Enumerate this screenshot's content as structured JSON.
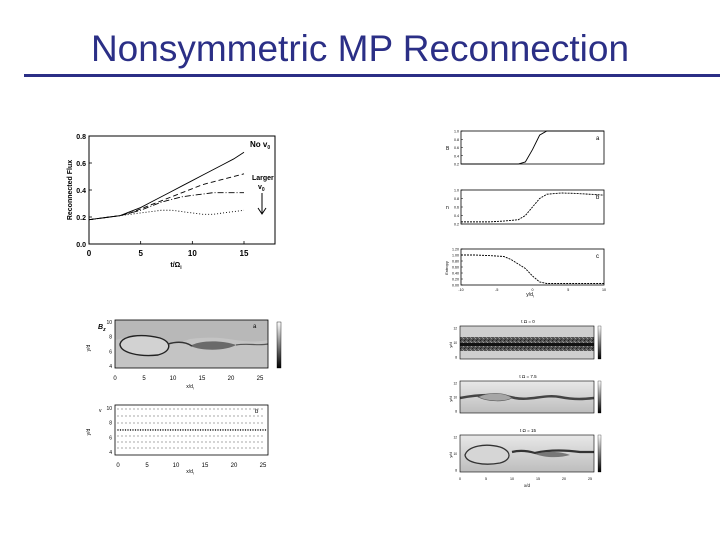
{
  "slide": {
    "title": "Nonsymmetric MP Reconnection"
  },
  "panel_flux": {
    "ylabel": "Reconnected Flux",
    "xlabel": "t/Ω",
    "xlabel_sub": "i",
    "curve_label_top": "No v",
    "curve_label_top_sub": "0",
    "curve_label_mid_1": "Larger",
    "curve_label_mid_2": "v",
    "curve_label_mid_sub": "0"
  },
  "panel_profiles": {
    "label_a": "a",
    "label_b": "b",
    "label_c": "c",
    "ylabel_a": "B",
    "ylabel_b": "n",
    "ylabel_c": "Entropy",
    "xlabel": "y/d",
    "xlabel_sub": "i"
  },
  "panel_density_a": {
    "label": "a",
    "corner": "B",
    "corner_sub": "z",
    "ylabel": "y/d",
    "xlabel": "x/d",
    "xlabel_sub": "i"
  },
  "panel_density_b": {
    "label": "b",
    "corner": "v",
    "ylabel": "y/d",
    "xlabel": "x/d",
    "xlabel_sub": "i"
  },
  "panel_snapshots": {
    "title_1": "t Ω",
    "title_1_value": "= 0",
    "title_2": "t Ω",
    "title_2_value": "= 7.5",
    "title_3": "t Ω",
    "title_3_value": "= 15",
    "ylabel": "y/d",
    "xlabel": "x/d"
  },
  "chart_data": [
    {
      "type": "line",
      "xlabel": "t/Ω",
      "ylabel": "Reconnected Flux",
      "xlim": [
        0,
        18
      ],
      "ylim": [
        0.0,
        0.8
      ],
      "x_ticks": [
        0,
        5,
        10,
        15
      ],
      "y_ticks": [
        0.0,
        0.2,
        0.4,
        0.6,
        0.8
      ],
      "x_ticklabels": [
        "0",
        "5",
        "10",
        "15"
      ],
      "y_ticklabels": [
        "0.0",
        "0.2",
        "0.4",
        "0.6",
        "0.8"
      ],
      "series": [
        {
          "name": "No v0",
          "style": "solid",
          "x": [
            0,
            1,
            2,
            3,
            4,
            5,
            6,
            7,
            8,
            9,
            10,
            11,
            12,
            13,
            14,
            15
          ],
          "y": [
            0.18,
            0.19,
            0.2,
            0.21,
            0.24,
            0.27,
            0.31,
            0.35,
            0.39,
            0.43,
            0.47,
            0.51,
            0.55,
            0.59,
            0.63,
            0.68
          ]
        },
        {
          "style": "dashed",
          "x": [
            0,
            1,
            2,
            3,
            4,
            5,
            6,
            7,
            8,
            9,
            10,
            11,
            12,
            13,
            14,
            15
          ],
          "y": [
            0.18,
            0.19,
            0.2,
            0.21,
            0.23,
            0.26,
            0.29,
            0.32,
            0.35,
            0.38,
            0.41,
            0.44,
            0.46,
            0.48,
            0.5,
            0.52
          ]
        },
        {
          "style": "dash-dot",
          "x": [
            0,
            1,
            2,
            3,
            4,
            5,
            6,
            7,
            8,
            9,
            10,
            11,
            12,
            13,
            14,
            15
          ],
          "y": [
            0.18,
            0.19,
            0.2,
            0.21,
            0.23,
            0.25,
            0.28,
            0.31,
            0.33,
            0.35,
            0.36,
            0.37,
            0.38,
            0.38,
            0.38,
            0.38
          ]
        },
        {
          "style": "dotted",
          "x": [
            0,
            1,
            2,
            3,
            4,
            5,
            6,
            7,
            8,
            9,
            10,
            11,
            12,
            13,
            14,
            15
          ],
          "y": [
            0.18,
            0.19,
            0.2,
            0.21,
            0.22,
            0.23,
            0.24,
            0.25,
            0.25,
            0.24,
            0.23,
            0.22,
            0.22,
            0.23,
            0.24,
            0.25
          ]
        }
      ],
      "annotations": [
        "No v0",
        "Larger v0"
      ]
    },
    {
      "type": "line",
      "xlabel": "y/d",
      "x_ticklabels": [
        "-10",
        "-5",
        "0",
        "5",
        "10"
      ],
      "xlim": [
        -10,
        10
      ],
      "panels": [
        {
          "label": "a",
          "ylabel": "B",
          "y_ticklabels": [
            "1.0",
            "0.8",
            "0.6",
            "0.4",
            "0.2"
          ],
          "y_ticks": [
            1.0,
            0.8,
            0.6,
            0.4,
            0.2
          ],
          "ylim": [
            0.2,
            1.0
          ],
          "x": [
            -10,
            -8,
            -6,
            -4,
            -2,
            -1,
            0,
            1,
            2,
            4,
            6,
            8,
            10
          ],
          "y": [
            0.2,
            0.2,
            0.2,
            0.2,
            0.2,
            0.25,
            0.55,
            0.9,
            1.0,
            1.0,
            1.0,
            1.0,
            1.0
          ]
        },
        {
          "label": "b",
          "ylabel": "n",
          "y_ticklabels": [
            "1.0",
            "0.8",
            "0.6",
            "0.4",
            "0.2"
          ],
          "y_ticks": [
            1.0,
            0.8,
            0.6,
            0.4,
            0.2
          ],
          "ylim": [
            0.2,
            1.0
          ],
          "x": [
            -10,
            -8,
            -6,
            -4,
            -2,
            -1,
            0,
            1,
            2,
            4,
            6,
            8,
            10
          ],
          "y": [
            0.25,
            0.25,
            0.25,
            0.27,
            0.3,
            0.4,
            0.6,
            0.8,
            0.9,
            0.93,
            0.92,
            0.9,
            0.88
          ]
        },
        {
          "label": "c",
          "ylabel": "Entropy",
          "y_ticklabels": [
            "1.20",
            "1.00",
            "0.80",
            "0.60",
            "0.40",
            "0.20",
            "0.00"
          ],
          "y_ticks": [
            1.2,
            1.0,
            0.8,
            0.6,
            0.4,
            0.2,
            0.0
          ],
          "ylim": [
            0.0,
            1.2
          ],
          "x": [
            -10,
            -8,
            -6,
            -4,
            -3,
            -2,
            -1,
            0,
            1,
            2,
            4,
            6,
            8,
            10
          ],
          "y": [
            1.0,
            1.0,
            0.98,
            0.95,
            0.85,
            0.7,
            0.55,
            0.3,
            0.1,
            0.05,
            0.05,
            0.05,
            0.05,
            0.05
          ]
        }
      ]
    },
    {
      "type": "heatmap",
      "label": "a",
      "xlabel": "x/d",
      "ylabel": "y/d",
      "x_ticklabels": [
        "0",
        "5",
        "10",
        "15",
        "20",
        "25"
      ],
      "y_ticklabels": [
        "10",
        "8",
        "6",
        "4"
      ]
    },
    {
      "type": "scatter",
      "label": "b",
      "xlabel": "x/d",
      "ylabel": "y/d",
      "x_ticklabels": [
        "0",
        "5",
        "10",
        "15",
        "20",
        "25"
      ],
      "y_ticklabels": [
        "10",
        "8",
        "6",
        "4"
      ]
    },
    {
      "type": "heatmap",
      "panels": [
        {
          "title": "t Ω = 0"
        },
        {
          "title": "t Ω = 7.5"
        },
        {
          "title": "t Ω = 15"
        }
      ],
      "xlabel": "x/d",
      "x_ticklabels": [
        "0",
        "5",
        "10",
        "15",
        "20",
        "25"
      ],
      "y_ticklabels": [
        "12",
        "10",
        "8"
      ]
    }
  ]
}
